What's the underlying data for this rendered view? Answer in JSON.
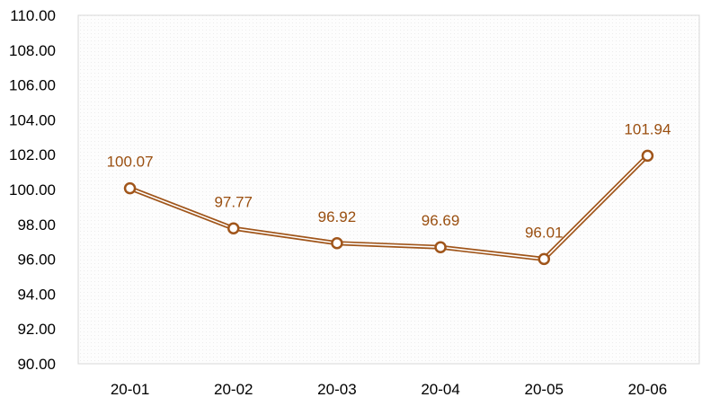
{
  "chart_data": {
    "type": "line",
    "title": "",
    "xlabel": "",
    "ylabel": "",
    "categories": [
      "20-01",
      "20-02",
      "20-03",
      "20-04",
      "20-05",
      "20-06"
    ],
    "series": [
      {
        "values": [
          100.07,
          97.77,
          96.92,
          96.69,
          96.01,
          101.94
        ]
      }
    ],
    "data_labels": [
      "100.07",
      "97.77",
      "96.92",
      "96.69",
      "96.01",
      "101.94"
    ],
    "ylim": [
      90,
      110
    ],
    "y_ticks": [
      "90.00",
      "92.00",
      "94.00",
      "96.00",
      "98.00",
      "100.00",
      "102.00",
      "104.00",
      "106.00",
      "108.00",
      "110.00"
    ],
    "grid": false,
    "legend": "none",
    "colors": {
      "line": "#a0551a",
      "label": "#9a4f10",
      "plot_border": "#d8d8d8",
      "plot_background": "#fdfdfd"
    }
  }
}
